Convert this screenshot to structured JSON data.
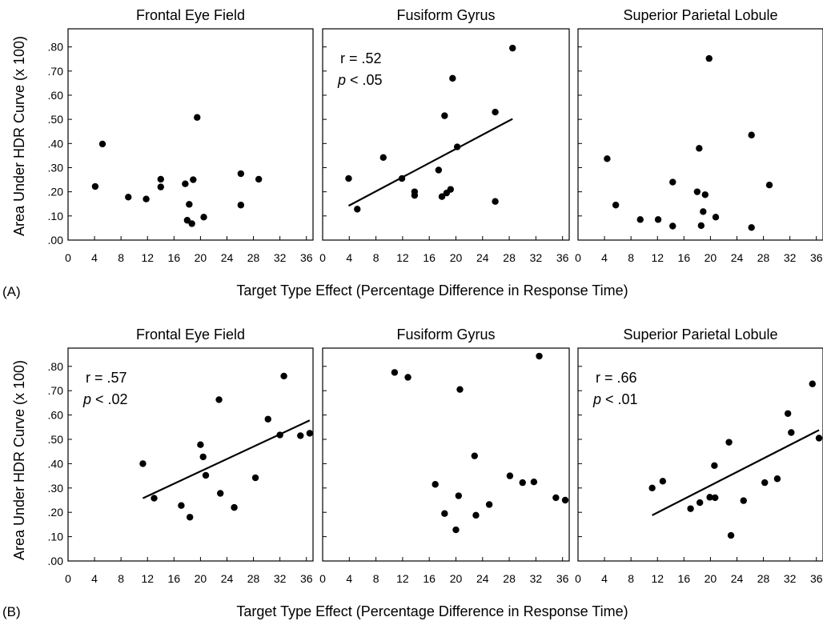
{
  "figure": {
    "xlabel": "Target Type Effect (Percentage Difference in Response Time)",
    "ylabel": "Area Under HDR Curve (x 100)",
    "y_tick_labels": [
      ".00",
      ".10",
      ".20",
      ".30",
      ".40",
      ".50",
      ".60",
      ".70",
      ".80"
    ],
    "x_tick_labels": [
      "0",
      "4",
      "8",
      "12",
      "16",
      "20",
      "24",
      "28",
      "32",
      "36"
    ]
  },
  "chart_data": [
    {
      "type": "scatter",
      "group": "A",
      "title": "Frontal Eye Field",
      "xlim": [
        0,
        37
      ],
      "ylim": [
        0,
        0.875
      ],
      "points": [
        [
          4.1,
          0.222
        ],
        [
          5.2,
          0.398
        ],
        [
          9.1,
          0.178
        ],
        [
          11.8,
          0.17
        ],
        [
          14,
          0.252
        ],
        [
          14,
          0.22
        ],
        [
          17.7,
          0.233
        ],
        [
          18,
          0.082
        ],
        [
          18.3,
          0.148
        ],
        [
          18.7,
          0.068
        ],
        [
          18.9,
          0.25
        ],
        [
          19.5,
          0.508
        ],
        [
          20.5,
          0.095
        ],
        [
          26.1,
          0.275
        ],
        [
          26.1,
          0.145
        ],
        [
          28.8,
          0.252
        ]
      ],
      "fit": null,
      "r": "",
      "p": ""
    },
    {
      "type": "scatter",
      "group": "A",
      "title": "Fusiform Gyrus",
      "xlim": [
        0,
        37
      ],
      "ylim": [
        0,
        0.875
      ],
      "points": [
        [
          3.9,
          0.255
        ],
        [
          5.2,
          0.128
        ],
        [
          9.1,
          0.342
        ],
        [
          11.9,
          0.255
        ],
        [
          13.8,
          0.2
        ],
        [
          13.8,
          0.185
        ],
        [
          17.4,
          0.29
        ],
        [
          17.9,
          0.18
        ],
        [
          18.3,
          0.515
        ],
        [
          18.6,
          0.195
        ],
        [
          19.2,
          0.21
        ],
        [
          19.5,
          0.67
        ],
        [
          20.2,
          0.386
        ],
        [
          25.9,
          0.53
        ],
        [
          25.9,
          0.16
        ],
        [
          28.5,
          0.795
        ]
      ],
      "fit": [
        [
          3.9,
          0.142
        ],
        [
          28.5,
          0.502
        ]
      ],
      "r": "r = .52",
      "p": ".05"
    },
    {
      "type": "scatter",
      "group": "A",
      "title": "Superior Parietal Lobule",
      "xlim": [
        0,
        37
      ],
      "ylim": [
        0,
        0.875
      ],
      "points": [
        [
          4.4,
          0.337
        ],
        [
          5.7,
          0.145
        ],
        [
          9.4,
          0.085
        ],
        [
          12.1,
          0.085
        ],
        [
          14.3,
          0.058
        ],
        [
          14.3,
          0.24
        ],
        [
          18,
          0.2
        ],
        [
          18.3,
          0.38
        ],
        [
          18.6,
          0.06
        ],
        [
          18.9,
          0.118
        ],
        [
          19.2,
          0.188
        ],
        [
          19.8,
          0.752
        ],
        [
          20.8,
          0.095
        ],
        [
          26.2,
          0.435
        ],
        [
          26.2,
          0.052
        ],
        [
          28.9,
          0.228
        ]
      ],
      "fit": null,
      "r": "",
      "p": ""
    },
    {
      "type": "scatter",
      "group": "B",
      "title": "Frontal Eye Field",
      "xlim": [
        0,
        37
      ],
      "ylim": [
        0,
        0.875
      ],
      "points": [
        [
          11.3,
          0.4
        ],
        [
          13,
          0.258
        ],
        [
          17.1,
          0.228
        ],
        [
          18.4,
          0.18
        ],
        [
          20,
          0.478
        ],
        [
          20.4,
          0.428
        ],
        [
          20.8,
          0.352
        ],
        [
          22.8,
          0.663
        ],
        [
          23,
          0.278
        ],
        [
          25.1,
          0.22
        ],
        [
          28.3,
          0.342
        ],
        [
          30.2,
          0.583
        ],
        [
          32,
          0.518
        ],
        [
          32.6,
          0.76
        ],
        [
          35.1,
          0.515
        ],
        [
          36.5,
          0.525
        ]
      ],
      "fit": [
        [
          11.3,
          0.258
        ],
        [
          36.5,
          0.578
        ]
      ],
      "r": "r = .57",
      "p": ".02"
    },
    {
      "type": "scatter",
      "group": "B",
      "title": "Fusiform Gyrus",
      "xlim": [
        0,
        37
      ],
      "ylim": [
        0,
        0.875
      ],
      "points": [
        [
          10.8,
          0.775
        ],
        [
          12.8,
          0.755
        ],
        [
          16.9,
          0.315
        ],
        [
          18.3,
          0.195
        ],
        [
          20,
          0.128
        ],
        [
          20.4,
          0.268
        ],
        [
          20.6,
          0.705
        ],
        [
          22.8,
          0.432
        ],
        [
          23,
          0.188
        ],
        [
          25,
          0.232
        ],
        [
          28.1,
          0.35
        ],
        [
          30,
          0.322
        ],
        [
          31.7,
          0.325
        ],
        [
          32.5,
          0.842
        ],
        [
          35,
          0.26
        ],
        [
          36.4,
          0.25
        ]
      ],
      "fit": null,
      "r": "",
      "p": ""
    },
    {
      "type": "scatter",
      "group": "B",
      "title": "Superior Parietal Lobule",
      "xlim": [
        0,
        37
      ],
      "ylim": [
        0,
        0.875
      ],
      "points": [
        [
          11.2,
          0.3
        ],
        [
          12.8,
          0.328
        ],
        [
          17,
          0.215
        ],
        [
          18.4,
          0.24
        ],
        [
          19.9,
          0.262
        ],
        [
          20.6,
          0.392
        ],
        [
          20.7,
          0.26
        ],
        [
          22.8,
          0.488
        ],
        [
          23.1,
          0.105
        ],
        [
          25,
          0.248
        ],
        [
          28.2,
          0.322
        ],
        [
          30.1,
          0.338
        ],
        [
          31.7,
          0.606
        ],
        [
          32.2,
          0.528
        ],
        [
          35.4,
          0.728
        ],
        [
          36.4,
          0.505
        ]
      ],
      "fit": [
        [
          11.2,
          0.188
        ],
        [
          36.4,
          0.538
        ]
      ],
      "r": "r = .66",
      "p": ".01"
    }
  ],
  "labels": {
    "group_a": "(A)",
    "group_b": "(B)",
    "p_symbol": "p"
  }
}
